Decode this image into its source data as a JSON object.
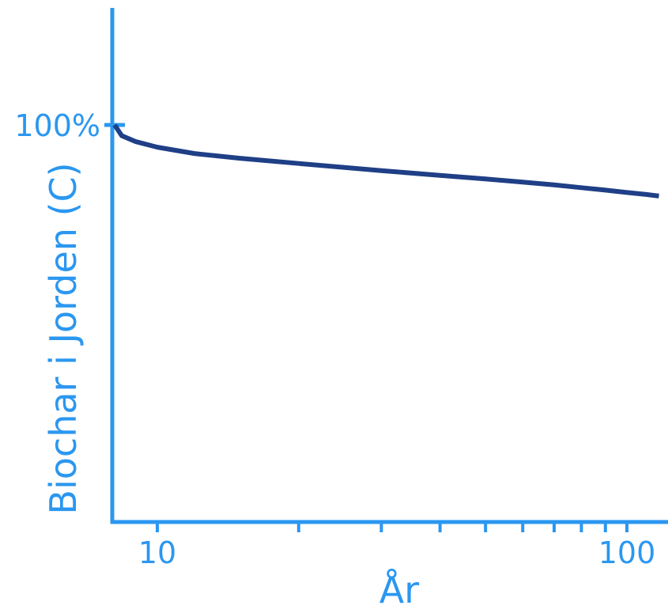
{
  "chart_data": {
    "type": "line",
    "xlabel": "År",
    "ylabel": "Biochar i Jorden (C)",
    "x_scale": "log",
    "xlim": [
      8.1,
      130
    ],
    "ylim": [
      0,
      130
    ],
    "x_tick_labels": [
      "10",
      "100"
    ],
    "x_ticks": [
      10,
      20,
      30,
      40,
      50,
      60,
      70,
      80,
      90,
      100
    ],
    "y_tick_labels": [
      "100%"
    ],
    "y_ticks": [
      100
    ],
    "grid": false,
    "series": [
      {
        "color": "#1f3f86",
        "x": [
          8.1,
          8.4,
          9,
          10,
          12,
          15,
          20,
          30,
          40,
          50,
          60,
          70,
          80,
          90,
          100,
          110,
          117
        ],
        "y": [
          100,
          97.3,
          95.8,
          94.4,
          92.8,
          91.6,
          90.3,
          88.5,
          87.3,
          86.4,
          85.6,
          84.9,
          84.2,
          83.6,
          83.0,
          82.5,
          82.1
        ]
      }
    ]
  },
  "colors": {
    "axis": "#2b97f0",
    "line": "#1f3f86",
    "text": "#2b97f0"
  }
}
